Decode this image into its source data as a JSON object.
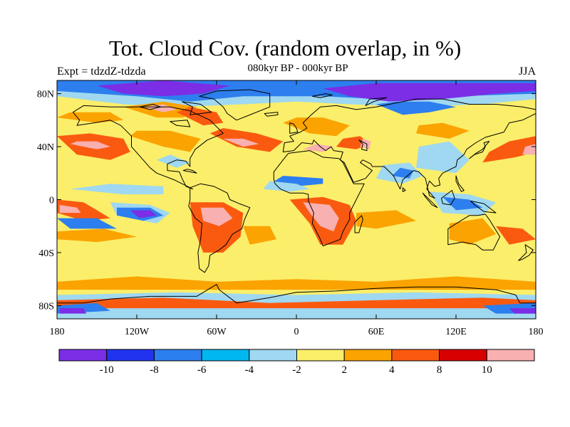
{
  "title": "Tot. Cloud Cov. (random overlap, in %)",
  "subtitle": "080kyr BP - 000kyr BP",
  "left_label": "Expt = tdzdZ-tdzda",
  "right_label": "JJA",
  "lat_ticks": [
    {
      "label": "80N",
      "lat": 80
    },
    {
      "label": "40N",
      "lat": 40
    },
    {
      "label": "0",
      "lat": 0
    },
    {
      "label": "40S",
      "lat": -40
    },
    {
      "label": "80S",
      "lat": -80
    }
  ],
  "lon_ticks": [
    {
      "label": "180",
      "lon": -180
    },
    {
      "label": "120W",
      "lon": -120
    },
    {
      "label": "60W",
      "lon": -60
    },
    {
      "label": "0",
      "lon": 0
    },
    {
      "label": "60E",
      "lon": 60
    },
    {
      "label": "120E",
      "lon": 120
    },
    {
      "label": "180",
      "lon": 180
    }
  ],
  "colorbar": {
    "colors": [
      "#7b2ee6",
      "#2233ee",
      "#2d7eee",
      "#00b7f0",
      "#9fd8f0",
      "#fbee6a",
      "#fba300",
      "#fa5a10",
      "#d80000",
      "#f8b0b0"
    ],
    "tick_labels": [
      "-10",
      "-8",
      "-6",
      "-4",
      "-2",
      "2",
      "4",
      "8",
      "10"
    ]
  },
  "colors": {
    "purple": "#7b2ee6",
    "blue": "#2233ee",
    "mid_blue": "#2d7eee",
    "cyan": "#00b7f0",
    "light_blue": "#9fd8f0",
    "yellow": "#fbee6a",
    "orange": "#fba300",
    "red_orange": "#fa5a10",
    "red": "#d80000",
    "pink": "#f8b0b0"
  }
}
